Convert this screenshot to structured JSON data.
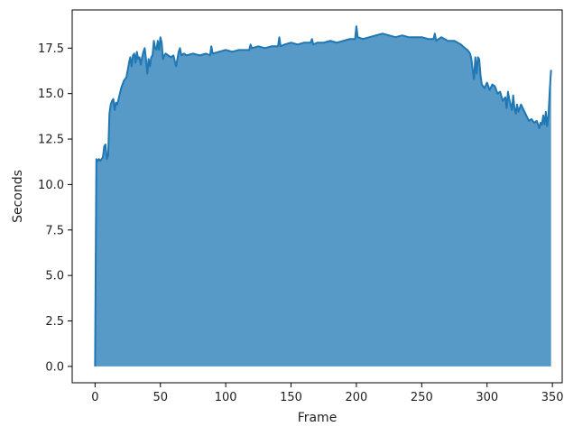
{
  "chart_data": {
    "type": "area",
    "title": "",
    "xlabel": "Frame",
    "ylabel": "Seconds",
    "xlim": [
      -17.5,
      357.5
    ],
    "ylim": [
      -0.9,
      19.6
    ],
    "grid": false,
    "xticks": [
      0,
      50,
      100,
      150,
      200,
      250,
      300,
      350
    ],
    "yticks": [
      0.0,
      2.5,
      5.0,
      7.5,
      10.0,
      12.5,
      15.0,
      17.5
    ],
    "ytick_labels": [
      "0.0",
      "2.5",
      "5.0",
      "7.5",
      "10.0",
      "12.5",
      "15.0",
      "17.5"
    ],
    "colors": {
      "line": "#1f77b4",
      "fill": "#1f77b4",
      "fill_opacity": 0.75
    },
    "series": [
      {
        "x": [
          0,
          1,
          2,
          3,
          4,
          5,
          6,
          7,
          8,
          9,
          10,
          11,
          12,
          13,
          14,
          15,
          16,
          17,
          18,
          19,
          20,
          22,
          24,
          26,
          27,
          28,
          29,
          30,
          31,
          32,
          33,
          34,
          35,
          36,
          37,
          38,
          39,
          40,
          41,
          42,
          43,
          44,
          45,
          46,
          47,
          48,
          49,
          50,
          51,
          52,
          53,
          54,
          56,
          58,
          60,
          62,
          64,
          65,
          66,
          68,
          70,
          75,
          80,
          85,
          88,
          89,
          90,
          95,
          100,
          105,
          110,
          115,
          118,
          119,
          120,
          125,
          130,
          135,
          140,
          141,
          142,
          145,
          150,
          155,
          160,
          165,
          166,
          167,
          170,
          175,
          180,
          185,
          190,
          195,
          199,
          200,
          201,
          205,
          210,
          215,
          220,
          225,
          230,
          235,
          240,
          245,
          250,
          255,
          259,
          260,
          261,
          265,
          270,
          275,
          280,
          283,
          285,
          287,
          288,
          289,
          290,
          291,
          292,
          293,
          294,
          295,
          296,
          298,
          300,
          302,
          304,
          306,
          308,
          310,
          312,
          314,
          315,
          316,
          317,
          318,
          319,
          320,
          321,
          322,
          323,
          324,
          326,
          328,
          330,
          332,
          334,
          336,
          338,
          340,
          341,
          342,
          343,
          344,
          345,
          346,
          347,
          348,
          349
        ],
        "y": [
          0.0,
          11.4,
          11.3,
          11.4,
          11.3,
          11.4,
          11.5,
          12.1,
          12.2,
          11.4,
          11.6,
          13.9,
          14.4,
          14.6,
          14.7,
          14.1,
          14.5,
          14.4,
          14.7,
          15.0,
          15.3,
          15.7,
          15.9,
          16.7,
          17.0,
          16.5,
          17.1,
          17.2,
          16.7,
          17.3,
          16.9,
          17.0,
          16.6,
          17.0,
          17.3,
          17.5,
          16.9,
          16.1,
          16.9,
          16.5,
          17.0,
          17.1,
          17.9,
          17.5,
          17.4,
          17.9,
          17.4,
          18.1,
          17.8,
          16.9,
          17.1,
          17.2,
          17.1,
          17.0,
          17.1,
          16.5,
          17.3,
          17.5,
          17.1,
          17.2,
          17.1,
          17.2,
          17.1,
          17.2,
          17.1,
          17.6,
          17.2,
          17.3,
          17.4,
          17.3,
          17.4,
          17.4,
          17.4,
          17.7,
          17.5,
          17.6,
          17.5,
          17.6,
          17.6,
          18.1,
          17.6,
          17.7,
          17.8,
          17.7,
          17.8,
          17.8,
          18.0,
          17.7,
          17.8,
          17.8,
          17.9,
          17.8,
          17.9,
          18.0,
          18.0,
          18.7,
          18.1,
          18.0,
          18.1,
          18.2,
          18.3,
          18.2,
          18.1,
          18.2,
          18.1,
          18.1,
          18.1,
          18.0,
          18.0,
          18.3,
          17.9,
          18.1,
          17.9,
          17.9,
          17.7,
          17.5,
          17.4,
          17.2,
          16.9,
          16.3,
          15.8,
          17.0,
          16.1,
          17.0,
          16.9,
          16.0,
          15.5,
          15.3,
          15.6,
          15.2,
          15.5,
          15.4,
          15.0,
          15.1,
          14.6,
          14.8,
          14.2,
          15.1,
          14.7,
          14.4,
          14.1,
          14.9,
          14.2,
          13.9,
          14.4,
          14.0,
          14.4,
          14.1,
          13.8,
          13.5,
          13.6,
          13.4,
          13.5,
          13.1,
          13.4,
          13.3,
          13.8,
          13.3,
          14.0,
          13.2,
          13.8,
          15.2,
          16.3
        ]
      }
    ]
  }
}
